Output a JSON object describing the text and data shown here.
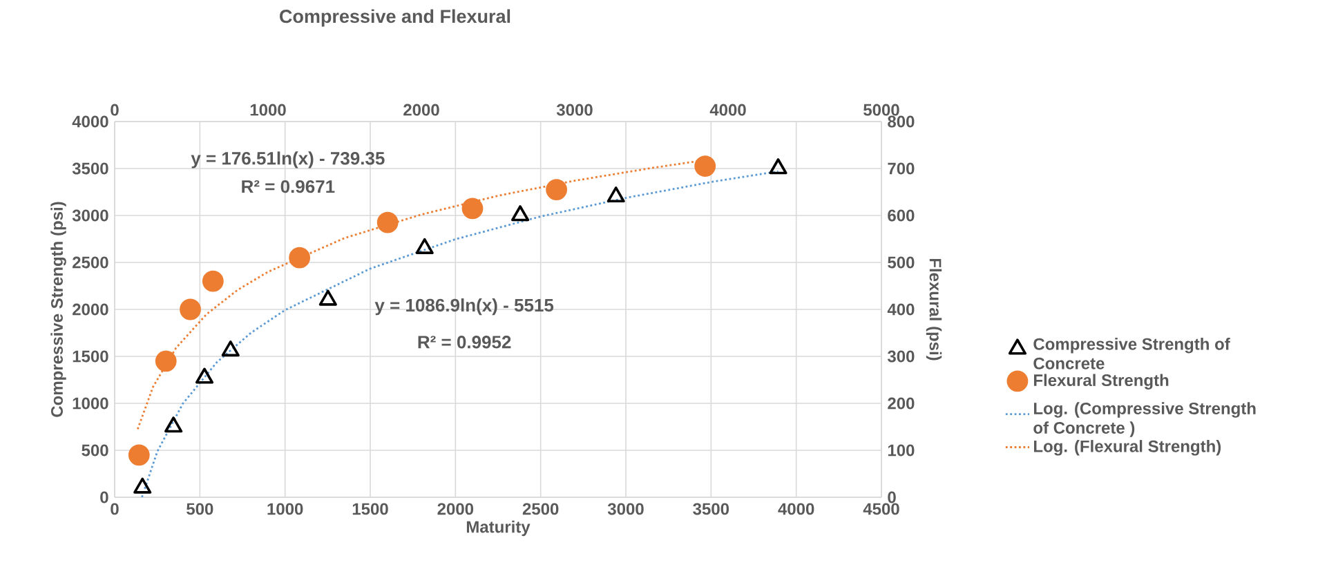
{
  "chart_data": {
    "type": "scatter",
    "title": "Compressive and Flexural",
    "xlabel": "Maturity",
    "ylabel": "Compressive Strength (psi)",
    "y2label": "Flexural  (psi)",
    "xlim": [
      0,
      4500
    ],
    "xticks": [
      0,
      500,
      1000,
      1500,
      2000,
      2500,
      3000,
      3500,
      4000,
      4500
    ],
    "ylim": [
      0,
      4000
    ],
    "yticks": [
      0,
      500,
      1000,
      1500,
      2000,
      2500,
      3000,
      3500,
      4000
    ],
    "x2lim": [
      0,
      5000
    ],
    "x2ticks": [
      0,
      1000,
      2000,
      3000,
      4000,
      5000
    ],
    "y2lim": [
      0,
      800
    ],
    "y2ticks": [
      0,
      100,
      200,
      300,
      400,
      500,
      600,
      700,
      800
    ],
    "grid": true,
    "legend": "right",
    "annotations": [
      "y = 176.51ln(x) - 739.35",
      "R² = 0.9671",
      "y = 1086.9ln(x) - 5515",
      "R² = 0.9952"
    ],
    "series": [
      {
        "name": "Compressive Strength of Concrete",
        "marker": "triangle",
        "color": "#000000",
        "x": [
          163,
          345,
          527,
          680,
          1252,
          1819,
          2380,
          2942,
          3894
        ],
        "values": [
          100,
          750,
          1270,
          1560,
          2100,
          2650,
          3000,
          3200,
          3500
        ]
      },
      {
        "name": "Flexural Strength",
        "marker": "circle",
        "color": "#ed7d31",
        "axis": "y2",
        "x": [
          143,
          301,
          444,
          577,
          1085,
          1602,
          2100,
          2593,
          3465
        ],
        "values": [
          90,
          290,
          400,
          460,
          510,
          585,
          615,
          655,
          705
        ]
      },
      {
        "name": "Log. (Compressive Strength of Concrete )",
        "type": "line",
        "marker": "none",
        "line_style": "dotted",
        "color": "#5b9bd5",
        "x": [
          160,
          250,
          400,
          600,
          800,
          1000,
          1500,
          2000,
          2500,
          3000,
          3500,
          3894
        ],
        "values": [
          1,
          486,
          997,
          1438,
          1751,
          1993,
          2434,
          2747,
          2989,
          3187,
          3356,
          3470
        ]
      },
      {
        "name": "Log. (Flexural Strength)",
        "type": "line",
        "marker": "none",
        "line_style": "dotted",
        "color": "#ed7d31",
        "axis": "y2",
        "x": [
          135,
          225,
          360,
          540,
          720,
          900,
          1350,
          1800,
          2250,
          2700,
          3150,
          3465
        ],
        "values": [
          145,
          235,
          318,
          390,
          441,
          480,
          552,
          602,
          642,
          674,
          701,
          718
        ]
      }
    ]
  }
}
